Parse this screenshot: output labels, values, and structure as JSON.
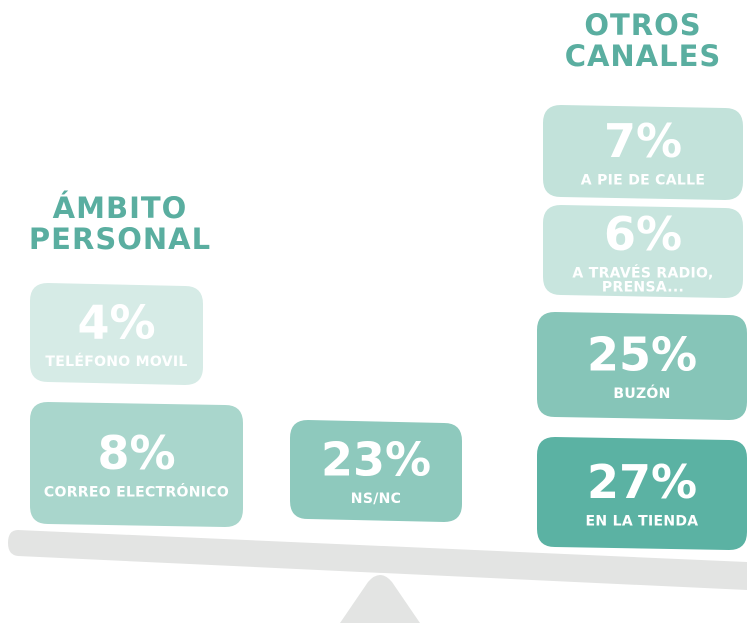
{
  "groups": [
    {
      "title": [
        "ÁMBITO",
        "PERSONAL"
      ],
      "boxes": [
        {
          "value": "4%",
          "label": [
            "TELÉFONO MOVIL"
          ],
          "color": "#d6ebe6"
        },
        {
          "value": "8%",
          "label": [
            "CORREO ELECTRÓNICO"
          ],
          "color": "#a9d6cc"
        }
      ]
    },
    {
      "boxes": [
        {
          "value": "23%",
          "label": [
            "NS/NC"
          ],
          "color": "#8ec9bd"
        }
      ]
    },
    {
      "title": [
        "OTROS",
        "CANALES"
      ],
      "boxes": [
        {
          "value": "7%",
          "label": [
            "A PIE DE CALLE"
          ],
          "color": "#c2e2da"
        },
        {
          "value": "6%",
          "label": [
            "A TRAVÉS RADIO,",
            "PRENSA..."
          ],
          "color": "#c8e5de"
        },
        {
          "value": "25%",
          "label": [
            "BUZÓN"
          ],
          "color": "#86c5b8"
        },
        {
          "value": "27%",
          "label": [
            "EN LA TIENDA"
          ],
          "color": "#5bb2a3"
        }
      ]
    }
  ]
}
